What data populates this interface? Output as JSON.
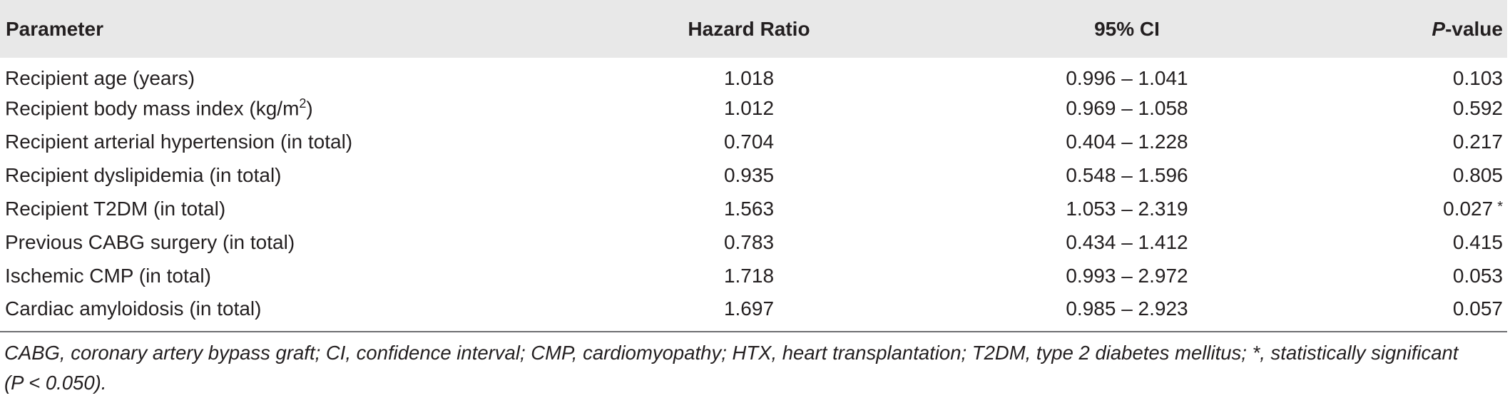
{
  "table": {
    "headers": {
      "parameter": "Parameter",
      "hazard_ratio": "Hazard Ratio",
      "ci": "95% CI",
      "p_value_italic": "P",
      "p_value_rest": "-value"
    },
    "rows": [
      {
        "parameter": "Recipient age (years)",
        "hazard_ratio": "1.018",
        "ci": "0.996 – 1.041",
        "p_value": "0.103",
        "significant_mark": ""
      },
      {
        "parameter": "Recipient body mass index (kg/m",
        "parameter_sup": "2",
        "parameter_after": ")",
        "hazard_ratio": "1.012",
        "ci": "0.969 – 1.058",
        "p_value": "0.592",
        "significant_mark": ""
      },
      {
        "parameter": "Recipient arterial hypertension (in total)",
        "hazard_ratio": "0.704",
        "ci": "0.404 – 1.228",
        "p_value": "0.217",
        "significant_mark": ""
      },
      {
        "parameter": "Recipient dyslipidemia (in total)",
        "hazard_ratio": "0.935",
        "ci": "0.548 – 1.596",
        "p_value": "0.805",
        "significant_mark": ""
      },
      {
        "parameter": "Recipient T2DM (in total)",
        "hazard_ratio": "1.563",
        "ci": "1.053 – 2.319",
        "p_value": "0.027",
        "significant_mark": "*"
      },
      {
        "parameter": "Previous CABG surgery (in total)",
        "hazard_ratio": "0.783",
        "ci": "0.434 – 1.412",
        "p_value": "0.415",
        "significant_mark": ""
      },
      {
        "parameter": "Ischemic CMP (in total)",
        "hazard_ratio": "1.718",
        "ci": "0.993 – 2.972",
        "p_value": "0.053",
        "significant_mark": ""
      },
      {
        "parameter": "Cardiac amyloidosis (in total)",
        "hazard_ratio": "1.697",
        "ci": "0.985 – 2.923",
        "p_value": "0.057",
        "significant_mark": ""
      }
    ]
  },
  "footnote": {
    "line1": "CABG, coronary artery bypass graft; CI, confidence interval; CMP, cardiomyopathy; HTX, heart transplantation; T2DM, type 2 diabetes mellitus; *, statistically significant",
    "line2": "(P < 0.050)."
  }
}
